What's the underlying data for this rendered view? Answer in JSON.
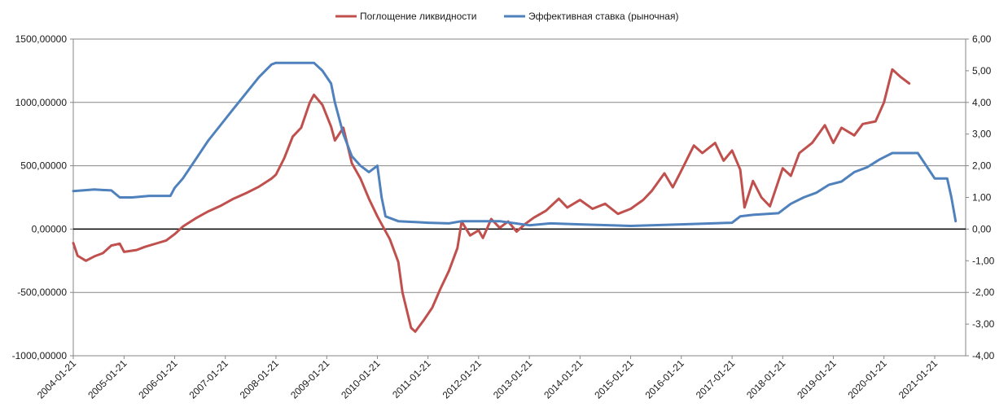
{
  "chart_data": {
    "type": "line",
    "x_format": "date",
    "x_ticks": [
      "2004-01-21",
      "2005-01-21",
      "2006-01-21",
      "2007-01-21",
      "2008-01-21",
      "2009-01-21",
      "2010-01-21",
      "2011-01-21",
      "2012-01-21",
      "2013-01-21",
      "2014-01-21",
      "2015-01-21",
      "2016-01-21",
      "2017-01-21",
      "2018-01-21",
      "2019-01-21",
      "2020-01-21",
      "2021-01-21"
    ],
    "xlim": [
      "2004-01-21",
      "2021-09-01"
    ],
    "y_left": {
      "lim": [
        -1000,
        1500
      ],
      "ticks": [
        "1500,00000",
        "1000,00000",
        "500,00000",
        "0,00000",
        "-500,00000",
        "-1000,00000"
      ],
      "tick_values": [
        1500,
        1000,
        500,
        0,
        -500,
        -1000
      ]
    },
    "y_right": {
      "lim": [
        -4,
        6
      ],
      "ticks": [
        "6,00",
        "5,00",
        "4,00",
        "3,00",
        "2,00",
        "1,00",
        "0,00",
        "-1,00",
        "-2,00",
        "-3,00",
        "-4,00"
      ],
      "tick_values": [
        6,
        5,
        4,
        3,
        2,
        1,
        0,
        -1,
        -2,
        -3,
        -4
      ]
    },
    "grid": "horizontal",
    "zero_line": true,
    "legend_position": "top",
    "series": [
      {
        "name": "Поглощение ликвидности",
        "axis": "left",
        "color": "#c0504d",
        "points": [
          [
            "2004-01-21",
            -110
          ],
          [
            "2004-02-21",
            -210
          ],
          [
            "2004-04-21",
            -250
          ],
          [
            "2004-06-21",
            -215
          ],
          [
            "2004-08-21",
            -190
          ],
          [
            "2004-10-21",
            -130
          ],
          [
            "2004-12-21",
            -115
          ],
          [
            "2005-01-21",
            -180
          ],
          [
            "2005-04-21",
            -165
          ],
          [
            "2005-06-21",
            -140
          ],
          [
            "2005-09-21",
            -110
          ],
          [
            "2005-11-21",
            -90
          ],
          [
            "2006-01-21",
            -40
          ],
          [
            "2006-03-21",
            20
          ],
          [
            "2006-06-21",
            85
          ],
          [
            "2006-09-21",
            140
          ],
          [
            "2006-12-21",
            185
          ],
          [
            "2007-03-21",
            240
          ],
          [
            "2007-06-21",
            285
          ],
          [
            "2007-09-21",
            335
          ],
          [
            "2007-12-21",
            400
          ],
          [
            "2008-01-21",
            430
          ],
          [
            "2008-03-21",
            560
          ],
          [
            "2008-05-21",
            730
          ],
          [
            "2008-07-21",
            800
          ],
          [
            "2008-09-21",
            1000
          ],
          [
            "2008-10-21",
            1060
          ],
          [
            "2008-12-21",
            980
          ],
          [
            "2009-02-21",
            810
          ],
          [
            "2009-03-21",
            700
          ],
          [
            "2009-05-21",
            800
          ],
          [
            "2009-07-21",
            520
          ],
          [
            "2009-09-21",
            400
          ],
          [
            "2009-11-21",
            240
          ],
          [
            "2010-01-21",
            100
          ],
          [
            "2010-04-21",
            -80
          ],
          [
            "2010-06-21",
            -260
          ],
          [
            "2010-07-21",
            -500
          ],
          [
            "2010-09-21",
            -780
          ],
          [
            "2010-10-21",
            -810
          ],
          [
            "2010-12-21",
            -720
          ],
          [
            "2011-02-21",
            -620
          ],
          [
            "2011-04-21",
            -470
          ],
          [
            "2011-06-21",
            -330
          ],
          [
            "2011-08-21",
            -150
          ],
          [
            "2011-09-21",
            60
          ],
          [
            "2011-11-21",
            -50
          ],
          [
            "2012-01-21",
            -10
          ],
          [
            "2012-02-21",
            -70
          ],
          [
            "2012-04-21",
            80
          ],
          [
            "2012-06-21",
            10
          ],
          [
            "2012-08-21",
            60
          ],
          [
            "2012-10-21",
            -20
          ],
          [
            "2012-12-21",
            40
          ],
          [
            "2013-02-21",
            90
          ],
          [
            "2013-05-21",
            145
          ],
          [
            "2013-08-21",
            240
          ],
          [
            "2013-10-21",
            170
          ],
          [
            "2014-01-21",
            230
          ],
          [
            "2014-04-21",
            160
          ],
          [
            "2014-07-21",
            200
          ],
          [
            "2014-10-21",
            120
          ],
          [
            "2015-01-21",
            160
          ],
          [
            "2015-04-21",
            230
          ],
          [
            "2015-06-21",
            300
          ],
          [
            "2015-09-21",
            440
          ],
          [
            "2015-11-21",
            330
          ],
          [
            "2016-01-21",
            460
          ],
          [
            "2016-04-21",
            660
          ],
          [
            "2016-06-21",
            600
          ],
          [
            "2016-09-21",
            680
          ],
          [
            "2016-11-21",
            540
          ],
          [
            "2017-01-21",
            620
          ],
          [
            "2017-03-21",
            470
          ],
          [
            "2017-04-21",
            170
          ],
          [
            "2017-06-21",
            380
          ],
          [
            "2017-08-21",
            250
          ],
          [
            "2017-10-21",
            180
          ],
          [
            "2018-01-21",
            480
          ],
          [
            "2018-03-21",
            420
          ],
          [
            "2018-05-21",
            600
          ],
          [
            "2018-08-21",
            680
          ],
          [
            "2018-11-21",
            820
          ],
          [
            "2019-01-21",
            680
          ],
          [
            "2019-03-21",
            800
          ],
          [
            "2019-06-21",
            740
          ],
          [
            "2019-08-21",
            830
          ],
          [
            "2019-11-21",
            850
          ],
          [
            "2020-01-21",
            1000
          ],
          [
            "2020-03-21",
            1260
          ],
          [
            "2020-05-21",
            1200
          ],
          [
            "2020-07-21",
            1150
          ]
        ]
      },
      {
        "name": "Эффективная ставка (рыночная)",
        "axis": "right",
        "color": "#4f81bd",
        "points": [
          [
            "2004-01-21",
            1.2
          ],
          [
            "2004-06-21",
            1.25
          ],
          [
            "2004-10-21",
            1.22
          ],
          [
            "2004-12-21",
            1.0
          ],
          [
            "2005-03-21",
            1.0
          ],
          [
            "2005-07-21",
            1.05
          ],
          [
            "2005-12-21",
            1.05
          ],
          [
            "2006-01-21",
            1.3
          ],
          [
            "2006-03-21",
            1.6
          ],
          [
            "2006-06-21",
            2.2
          ],
          [
            "2006-09-21",
            2.8
          ],
          [
            "2006-12-21",
            3.3
          ],
          [
            "2007-03-21",
            3.8
          ],
          [
            "2007-06-21",
            4.3
          ],
          [
            "2007-09-21",
            4.8
          ],
          [
            "2007-12-21",
            5.2
          ],
          [
            "2008-01-21",
            5.25
          ],
          [
            "2008-06-21",
            5.25
          ],
          [
            "2008-10-21",
            5.25
          ],
          [
            "2008-12-21",
            5.0
          ],
          [
            "2009-02-21",
            4.6
          ],
          [
            "2009-03-21",
            4.0
          ],
          [
            "2009-05-21",
            3.0
          ],
          [
            "2009-07-21",
            2.3
          ],
          [
            "2009-09-21",
            2.0
          ],
          [
            "2009-11-21",
            1.8
          ],
          [
            "2010-01-21",
            2.0
          ],
          [
            "2010-02-21",
            1.0
          ],
          [
            "2010-03-21",
            0.4
          ],
          [
            "2010-06-21",
            0.25
          ],
          [
            "2011-01-21",
            0.2
          ],
          [
            "2011-06-21",
            0.18
          ],
          [
            "2011-09-21",
            0.25
          ],
          [
            "2012-06-21",
            0.25
          ],
          [
            "2013-01-21",
            0.12
          ],
          [
            "2013-06-21",
            0.18
          ],
          [
            "2014-01-21",
            0.15
          ],
          [
            "2015-01-21",
            0.1
          ],
          [
            "2016-01-21",
            0.15
          ],
          [
            "2017-01-21",
            0.2
          ],
          [
            "2017-03-21",
            0.4
          ],
          [
            "2017-06-21",
            0.45
          ],
          [
            "2017-12-21",
            0.5
          ],
          [
            "2018-03-21",
            0.8
          ],
          [
            "2018-06-21",
            1.0
          ],
          [
            "2018-09-21",
            1.15
          ],
          [
            "2018-12-21",
            1.4
          ],
          [
            "2019-03-21",
            1.5
          ],
          [
            "2019-06-21",
            1.8
          ],
          [
            "2019-09-21",
            1.95
          ],
          [
            "2019-12-21",
            2.2
          ],
          [
            "2020-03-21",
            2.4
          ],
          [
            "2020-09-21",
            2.4
          ],
          [
            "2020-11-21",
            2.0
          ],
          [
            "2021-01-21",
            1.6
          ],
          [
            "2021-04-21",
            1.6
          ],
          [
            "2021-05-21",
            1.0
          ],
          [
            "2021-06-21",
            0.25
          ]
        ]
      }
    ]
  }
}
